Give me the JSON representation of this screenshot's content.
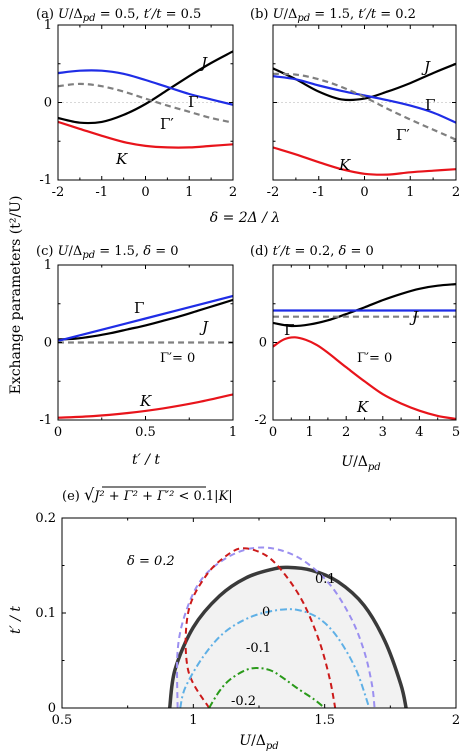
{
  "y_shared_label": "Exchange parameters (t²/U)",
  "chart_data": [
    {
      "id": "a",
      "type": "line",
      "title": "(a) U/Δpd = 0.5, t′/t = 0.5",
      "title_parts": [
        "(a) ",
        "U",
        "/Δ",
        "pd",
        " = 0.5, ",
        "t′/t",
        " = 0.5"
      ],
      "xlim": [
        -2,
        2
      ],
      "ylim": [
        -1,
        1
      ],
      "xticks": [
        "-2",
        "-1",
        "0",
        "1",
        "2"
      ],
      "yticks": [
        "1",
        "0",
        "-1"
      ],
      "xlabel": "δ = 2Δ / λ",
      "series": [
        {
          "name": "J",
          "color": "#000000",
          "dash": "none",
          "x": [
            -2,
            -1.5,
            -1,
            -0.5,
            0,
            0.5,
            1,
            1.5,
            2
          ],
          "y": [
            -0.2,
            -0.26,
            -0.25,
            -0.16,
            -0.02,
            0.16,
            0.34,
            0.51,
            0.66
          ]
        },
        {
          "name": "Γ",
          "color": "#1f2de6",
          "dash": "none",
          "x": [
            -2,
            -1.5,
            -1,
            -0.5,
            0,
            0.5,
            1,
            1.5,
            2
          ],
          "y": [
            0.38,
            0.41,
            0.41,
            0.37,
            0.29,
            0.2,
            0.11,
            0.04,
            -0.03
          ]
        },
        {
          "name": "Γ′",
          "color": "#808080",
          "dash": "dash",
          "x": [
            -2,
            -1.5,
            -1,
            -0.5,
            0,
            0.5,
            1,
            1.5,
            2
          ],
          "y": [
            0.21,
            0.24,
            0.21,
            0.14,
            0.05,
            -0.04,
            -0.12,
            -0.2,
            -0.26
          ]
        },
        {
          "name": "K",
          "color": "#e8141b",
          "dash": "none",
          "x": [
            -2,
            -1.5,
            -1,
            -0.5,
            0,
            0.5,
            1,
            1.5,
            2
          ],
          "y": [
            -0.25,
            -0.34,
            -0.43,
            -0.51,
            -0.56,
            -0.58,
            -0.58,
            -0.56,
            -0.54
          ]
        }
      ]
    },
    {
      "id": "b",
      "type": "line",
      "title": "(b) U/Δpd = 1.5, t′/t = 0.2",
      "title_parts": [
        "(b) ",
        "U",
        "/Δ",
        "pd",
        " = 1.5, ",
        "t′/t",
        " = 0.2"
      ],
      "xlim": [
        -2,
        2
      ],
      "ylim": [
        -1,
        1
      ],
      "xticks": [
        "-2",
        "-1",
        "0",
        "1",
        "2"
      ],
      "yticks": [
        "",
        "",
        ""
      ],
      "series": [
        {
          "name": "J",
          "color": "#000000",
          "dash": "none",
          "x": [
            -2,
            -1.5,
            -1,
            -0.5,
            0,
            0.5,
            1,
            1.5,
            2
          ],
          "y": [
            0.44,
            0.3,
            0.14,
            0.04,
            0.05,
            0.14,
            0.25,
            0.38,
            0.5
          ]
        },
        {
          "name": "Γ",
          "color": "#1f2de6",
          "dash": "none",
          "x": [
            -2,
            -1.5,
            -1,
            -0.5,
            0,
            0.5,
            1,
            1.5,
            2
          ],
          "y": [
            0.34,
            0.3,
            0.22,
            0.15,
            0.09,
            0.03,
            -0.04,
            -0.13,
            -0.26
          ]
        },
        {
          "name": "Γ′",
          "color": "#808080",
          "dash": "dash",
          "x": [
            -2,
            -1.5,
            -1,
            -0.5,
            0,
            0.5,
            1,
            1.5,
            2
          ],
          "y": [
            0.37,
            0.36,
            0.3,
            0.2,
            0.07,
            -0.08,
            -0.22,
            -0.35,
            -0.48
          ]
        },
        {
          "name": "K",
          "color": "#e8141b",
          "dash": "none",
          "x": [
            -2,
            -1.5,
            -1,
            -0.5,
            0,
            0.5,
            1,
            1.5,
            2
          ],
          "y": [
            -0.58,
            -0.67,
            -0.77,
            -0.86,
            -0.92,
            -0.93,
            -0.9,
            -0.88,
            -0.86
          ]
        }
      ]
    },
    {
      "id": "c",
      "type": "line",
      "title": "(c) U/Δpd = 1.5, δ = 0",
      "title_parts": [
        "(c) ",
        "U",
        "/Δ",
        "pd",
        " = 1.5, ",
        "δ",
        " = 0"
      ],
      "xlim": [
        0,
        1
      ],
      "ylim": [
        -1,
        1
      ],
      "xticks": [
        "0",
        "0.5",
        "1"
      ],
      "yticks": [
        "1",
        "0",
        "-1"
      ],
      "xlabel": "t′ / t",
      "zero_label": "Γ′= 0",
      "series": [
        {
          "name": "J",
          "color": "#000000",
          "dash": "none",
          "x": [
            0,
            0.1,
            0.2,
            0.3,
            0.4,
            0.5,
            0.6,
            0.7,
            0.8,
            0.9,
            1
          ],
          "y": [
            0.04,
            0.05,
            0.08,
            0.12,
            0.17,
            0.22,
            0.28,
            0.34,
            0.41,
            0.48,
            0.55
          ]
        },
        {
          "name": "Γ",
          "color": "#1f2de6",
          "dash": "none",
          "x": [
            0,
            0.5,
            1
          ],
          "y": [
            0.02,
            0.31,
            0.6
          ]
        },
        {
          "name": "Γ′",
          "color": "#808080",
          "dash": "dash",
          "x": [
            0,
            1
          ],
          "y": [
            0,
            0
          ]
        },
        {
          "name": "K",
          "color": "#e8141b",
          "dash": "none",
          "x": [
            0,
            0.2,
            0.4,
            0.6,
            0.8,
            1
          ],
          "y": [
            -0.97,
            -0.95,
            -0.91,
            -0.85,
            -0.77,
            -0.67
          ]
        }
      ]
    },
    {
      "id": "d",
      "type": "line",
      "title": "(d) t′/t = 0.2, δ = 0",
      "title_parts": [
        "(d) ",
        "t′/t",
        " = 0.2, ",
        "δ",
        " = 0"
      ],
      "xlim": [
        0,
        5
      ],
      "ylim": [
        -2,
        1
      ],
      "xticks": [
        "0",
        "1",
        "2",
        "3",
        "4",
        "5"
      ],
      "yticks": [
        "",
        "0",
        "-2"
      ],
      "xlabel": "U/Δpd",
      "zero_label": "Γ′= 0",
      "series": [
        {
          "name": "J",
          "color": "#000000",
          "dash": "none",
          "x": [
            0,
            0.5,
            1,
            1.5,
            2,
            2.5,
            3,
            3.5,
            4,
            4.5,
            5
          ],
          "y": [
            -0.12,
            -0.18,
            -0.15,
            -0.07,
            0.05,
            0.18,
            0.32,
            0.44,
            0.54,
            0.6,
            0.63
          ]
        },
        {
          "name": "Γ",
          "color": "#1f2de6",
          "dash": "none",
          "x": [
            0,
            5
          ],
          "y": [
            0.12,
            0.12
          ]
        },
        {
          "name": "Γ′",
          "color": "#808080",
          "dash": "dash",
          "x": [
            0,
            5
          ],
          "y": [
            0,
            0
          ]
        },
        {
          "name": "K",
          "color": "#e8141b",
          "dash": "none",
          "x": [
            0,
            0.3,
            0.6,
            0.9,
            1.2,
            1.5,
            2,
            2.5,
            3,
            3.5,
            4,
            4.5,
            5
          ],
          "y": [
            -0.58,
            -0.44,
            -0.4,
            -0.45,
            -0.55,
            -0.7,
            -0.98,
            -1.25,
            -1.5,
            -1.68,
            -1.82,
            -1.92,
            -1.98
          ]
        }
      ]
    },
    {
      "id": "e",
      "type": "line",
      "title": "(e) √(J² + Γ² + Γ′²) < 0.1|K|",
      "title_parts": [
        "(e) ",
        "√",
        "J² + Γ² + Γ′²",
        " < 0.1|",
        "K",
        "|"
      ],
      "xlim": [
        0.5,
        2
      ],
      "ylim": [
        0,
        0.2
      ],
      "xticks": [
        "0.5",
        "1",
        "1.5",
        "2"
      ],
      "yticks": [
        "0.2",
        "0.1",
        "0"
      ],
      "xlabel": "U/Δpd",
      "ylabel": "t′ / t",
      "region_fill": "#f2f2f2",
      "series": [
        {
          "name": "0",
          "color": "#3a3a3a",
          "dash": "none",
          "width": 3.5,
          "x": [
            0.91,
            0.93,
            1,
            1.1,
            1.2,
            1.3,
            1.36,
            1.45,
            1.55,
            1.65,
            1.73,
            1.79,
            1.81
          ],
          "y": [
            0,
            0.04,
            0.085,
            0.118,
            0.137,
            0.146,
            0.148,
            0.145,
            0.133,
            0.108,
            0.07,
            0.025,
            0
          ]
        },
        {
          "name": "0.1",
          "color": "#9b8ff0",
          "dash": "dash",
          "width": 2,
          "x": [
            0.94,
            0.94,
            0.97,
            1.03,
            1.12,
            1.22,
            1.32,
            1.42,
            1.52,
            1.6,
            1.65,
            1.68,
            1.69
          ],
          "y": [
            0,
            0.06,
            0.1,
            0.135,
            0.157,
            0.168,
            0.167,
            0.155,
            0.13,
            0.095,
            0.06,
            0.025,
            0
          ]
        },
        {
          "name": "δ = 0.2",
          "color": "#cc1a1a",
          "dash": "dash",
          "width": 2,
          "x": [
            1.06,
            0.98,
            0.98,
            1.05,
            1.14,
            1.2,
            1.28,
            1.35,
            1.42,
            1.48,
            1.52,
            1.54
          ],
          "y": [
            0,
            0.04,
            0.1,
            0.14,
            0.163,
            0.168,
            0.16,
            0.14,
            0.11,
            0.07,
            0.03,
            0
          ]
        },
        {
          "name": "-0.1",
          "color": "#5fb0e6",
          "dash": "dashdot",
          "width": 2,
          "x": [
            0.95,
            0.97,
            1.04,
            1.12,
            1.22,
            1.32,
            1.4,
            1.48,
            1.55,
            1.62,
            1.67
          ],
          "y": [
            0,
            0.022,
            0.055,
            0.08,
            0.096,
            0.103,
            0.103,
            0.094,
            0.074,
            0.04,
            0
          ]
        },
        {
          "name": "-0.2",
          "color": "#2a9a1a",
          "dash": "dashdot",
          "width": 2,
          "x": [
            1.06,
            1.1,
            1.14,
            1.2,
            1.25,
            1.3,
            1.35,
            1.4,
            1.46,
            1.5
          ],
          "y": [
            0,
            0.018,
            0.03,
            0.04,
            0.042,
            0.039,
            0.03,
            0.02,
            0.009,
            0
          ]
        }
      ]
    }
  ]
}
